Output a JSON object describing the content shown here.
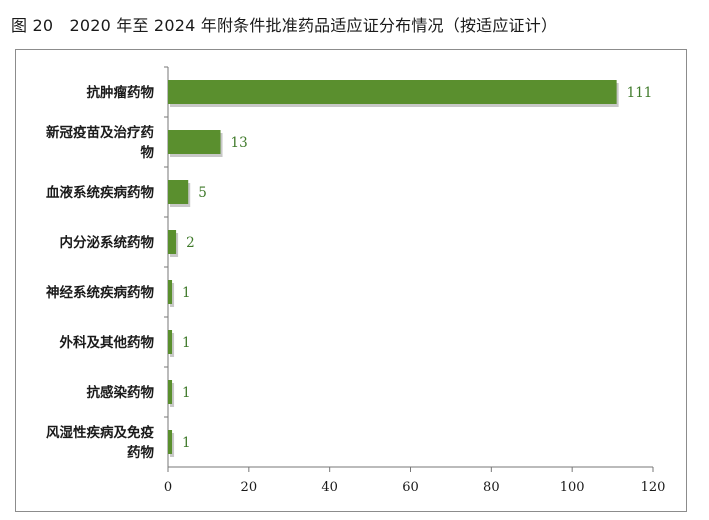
{
  "figure": {
    "title": "图 20　2020 年至 2024 年附条件批准药品适应证分布情况（按适应证计）"
  },
  "chart_data": {
    "type": "bar",
    "orientation": "horizontal",
    "title": "",
    "xlabel": "",
    "ylabel": "",
    "categories": [
      [
        "抗肿瘤药物"
      ],
      [
        "新冠疫苗及治疗药",
        "物"
      ],
      [
        "血液系统疾病药物"
      ],
      [
        "内分泌系统药物"
      ],
      [
        "神经系统疾病药物"
      ],
      [
        "外科及其他药物"
      ],
      [
        "抗感染药物"
      ],
      [
        "风湿性疾病及免疫",
        "药物"
      ]
    ],
    "values": [
      111,
      13,
      5,
      2,
      1,
      1,
      1,
      1
    ],
    "xlim": [
      0,
      120
    ],
    "xticks": [
      0,
      20,
      40,
      60,
      80,
      100,
      120
    ],
    "grid": false,
    "legend": "none",
    "bar_color": "#5a8f2e",
    "bar_shadow_color": "#9a9a9a",
    "value_label_color": "#3f7a2a"
  }
}
